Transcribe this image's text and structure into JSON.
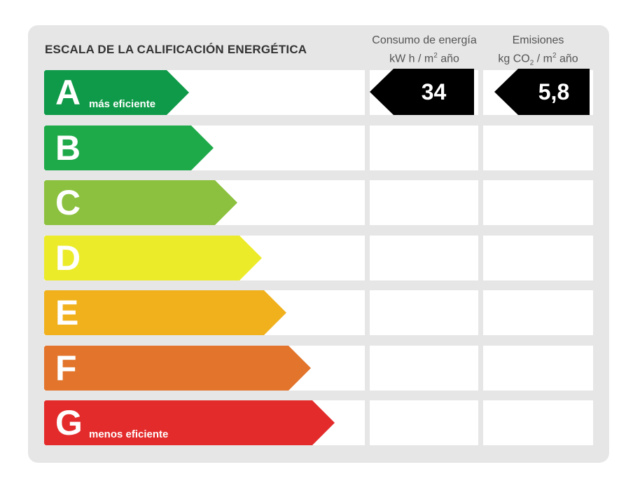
{
  "title": "ESCALA DE LA CALIFICACIÓN ENERGÉTICA",
  "columns": {
    "consumo": {
      "line1": "Consumo de energía",
      "unit_a": "kW h  / m",
      "unit_sup": "2",
      "unit_b": " año"
    },
    "emisiones": {
      "line1": "Emisiones",
      "unit_a": "kg CO",
      "unit_sub": "2",
      "unit_b": "  / m",
      "unit_sup": "2",
      "unit_c": " año"
    }
  },
  "ratings": [
    {
      "letter": "A",
      "label": "más eficiente",
      "color": "#0e9a48"
    },
    {
      "letter": "B",
      "label": "",
      "color": "#1faa4a"
    },
    {
      "letter": "C",
      "label": "",
      "color": "#8cc13f"
    },
    {
      "letter": "D",
      "label": "",
      "color": "#eceb29"
    },
    {
      "letter": "E",
      "label": "",
      "color": "#f0b11d"
    },
    {
      "letter": "F",
      "label": "",
      "color": "#e2742b"
    },
    {
      "letter": "G",
      "label": "menos eficiente",
      "color": "#e32b2b"
    }
  ],
  "result": {
    "rating": "A",
    "consumo_value": "34",
    "emisiones_value": "5,8"
  }
}
